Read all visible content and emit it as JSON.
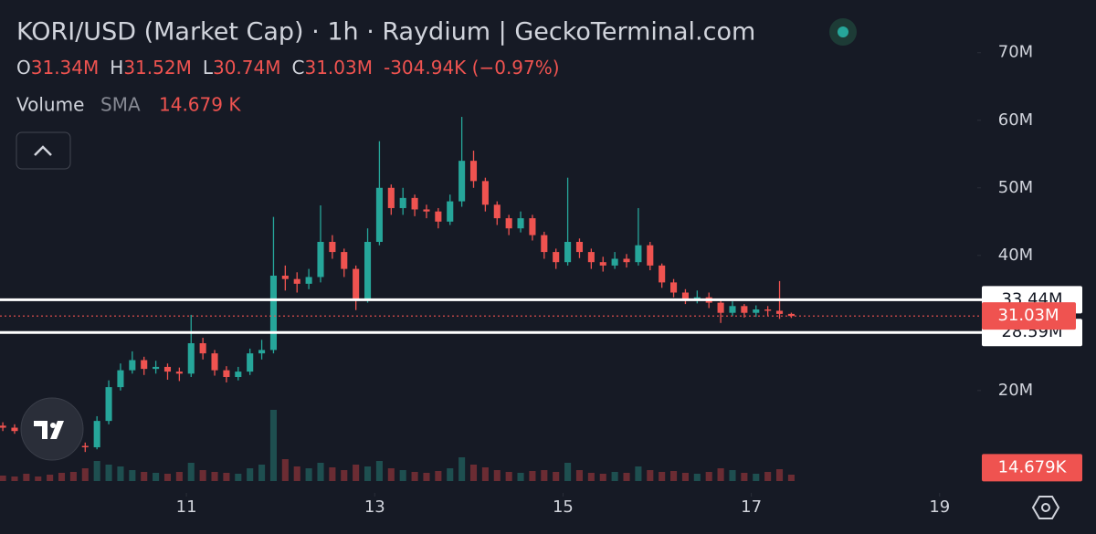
{
  "chart_data": {
    "type": "candlestick",
    "title": "KORI/USD (Market Cap) · 1h · Raydium | GeckoTerminal.com",
    "ohlc_legend": [
      {
        "label": "O",
        "value": "31.34M"
      },
      {
        "label": "H",
        "value": "31.52M"
      },
      {
        "label": "L",
        "value": "30.74M"
      },
      {
        "label": "C",
        "value": "31.03M"
      }
    ],
    "change": "-304.94K (−0.97%)",
    "volume_title": "Volume",
    "sma_title": "SMA",
    "sma_value": "14.679 K",
    "up_color": "#26a69a",
    "down_color": "#ef5350",
    "up_volume_color": "#1e4f50",
    "down_volume_color": "#6b2c33",
    "x": [
      9.05,
      9.175,
      9.3,
      9.425,
      9.55,
      9.675,
      9.8,
      9.925,
      10.05,
      10.175,
      10.3,
      10.425,
      10.55,
      10.675,
      10.8,
      10.925,
      11.05,
      11.175,
      11.3,
      11.425,
      11.55,
      11.675,
      11.8,
      11.925,
      12.05,
      12.175,
      12.3,
      12.425,
      12.55,
      12.675,
      12.8,
      12.925,
      13.05,
      13.175,
      13.3,
      13.425,
      13.55,
      13.675,
      13.8,
      13.925,
      14.05,
      14.175,
      14.3,
      14.425,
      14.55,
      14.675,
      14.8,
      14.925,
      15.05,
      15.175,
      15.3,
      15.425,
      15.55,
      15.675,
      15.8,
      15.925,
      16.05,
      16.175,
      16.3,
      16.425,
      16.55,
      16.675,
      16.8,
      16.925,
      17.05,
      17.175,
      17.3,
      17.425
    ],
    "open": [
      14.8,
      14.5,
      14.0,
      13.5,
      13.2,
      12.8,
      12.2,
      11.8,
      11.6,
      15.5,
      20.5,
      23.0,
      24.5,
      23.2,
      23.5,
      22.8,
      22.5,
      27.0,
      25.5,
      23.0,
      22.0,
      22.8,
      25.5,
      26.0,
      37.0,
      36.5,
      35.8,
      36.8,
      42.0,
      40.5,
      38.0,
      33.5,
      42.0,
      50.0,
      47.0,
      48.5,
      46.8,
      46.5,
      45.0,
      48.0,
      54.0,
      51.0,
      47.5,
      45.5,
      44.0,
      45.5,
      43.0,
      40.5,
      39.0,
      42.0,
      40.5,
      39.0,
      38.5,
      39.5,
      39.0,
      41.5,
      38.5,
      36.0,
      34.5,
      33.5,
      33.8,
      33.0,
      31.5,
      32.5,
      31.5,
      32.0,
      31.8,
      31.34
    ],
    "high": [
      15.3,
      15.0,
      14.4,
      13.9,
      13.6,
      13.2,
      12.6,
      12.3,
      16.2,
      21.5,
      24.0,
      25.8,
      25.0,
      24.4,
      24.0,
      23.4,
      31.2,
      27.8,
      26.0,
      23.6,
      23.5,
      26.2,
      27.5,
      45.7,
      38.5,
      37.5,
      38.0,
      47.4,
      43.0,
      41.0,
      38.5,
      44.0,
      56.9,
      50.5,
      50.0,
      49.0,
      47.5,
      47.0,
      49.0,
      60.5,
      55.5,
      51.5,
      48.0,
      46.0,
      46.5,
      46.0,
      43.5,
      41.0,
      51.5,
      42.5,
      41.0,
      39.8,
      40.5,
      40.2,
      47.0,
      42.0,
      38.8,
      36.5,
      35.0,
      34.8,
      34.5,
      33.4,
      33.2,
      32.8,
      32.6,
      32.5,
      36.2,
      31.52
    ],
    "low": [
      14.0,
      13.6,
      13.0,
      12.7,
      12.2,
      11.7,
      11.3,
      10.9,
      11.3,
      15.0,
      20.0,
      22.5,
      22.3,
      22.5,
      21.6,
      21.4,
      22.0,
      24.6,
      22.2,
      21.2,
      21.5,
      22.3,
      24.6,
      25.5,
      34.8,
      34.5,
      35.0,
      36.0,
      39.5,
      36.8,
      31.9,
      33.0,
      41.5,
      46.0,
      46.0,
      45.8,
      45.5,
      44.0,
      44.5,
      47.2,
      50.0,
      46.5,
      44.5,
      43.0,
      43.4,
      42.2,
      39.5,
      38.0,
      38.5,
      39.6,
      38.0,
      37.6,
      38.0,
      38.2,
      38.5,
      37.8,
      35.2,
      33.8,
      32.8,
      32.9,
      32.2,
      30.0,
      31.0,
      30.8,
      30.9,
      31.0,
      30.6,
      30.74
    ],
    "close": [
      14.5,
      14.0,
      13.5,
      13.2,
      12.8,
      12.2,
      11.8,
      11.6,
      15.5,
      20.5,
      23.0,
      24.5,
      23.2,
      23.5,
      22.8,
      22.5,
      27.0,
      25.5,
      23.0,
      22.0,
      22.8,
      25.5,
      26.0,
      37.0,
      36.5,
      35.8,
      36.8,
      42.0,
      40.5,
      38.0,
      33.5,
      42.0,
      50.0,
      47.0,
      48.5,
      46.8,
      46.5,
      45.0,
      48.0,
      54.0,
      51.0,
      47.5,
      45.5,
      44.0,
      45.5,
      43.0,
      40.5,
      39.0,
      42.0,
      40.5,
      39.0,
      38.5,
      39.5,
      39.0,
      41.5,
      38.5,
      36.0,
      34.5,
      33.5,
      33.8,
      33.0,
      31.5,
      32.5,
      31.5,
      32.0,
      31.8,
      31.34,
      31.03
    ],
    "volume": [
      6,
      5,
      8,
      5,
      7,
      9,
      10,
      14,
      22,
      18,
      16,
      12,
      10,
      9,
      8,
      10,
      20,
      12,
      10,
      9,
      8,
      14,
      18,
      78,
      24,
      16,
      14,
      20,
      15,
      12,
      18,
      16,
      22,
      14,
      12,
      10,
      9,
      11,
      14,
      26,
      18,
      15,
      12,
      10,
      9,
      11,
      12,
      10,
      20,
      12,
      9,
      8,
      10,
      9,
      16,
      12,
      10,
      11,
      9,
      8,
      10,
      14,
      12,
      9,
      8,
      10,
      13,
      7
    ],
    "xlim": [
      9.02,
      19.4
    ],
    "xticks": [
      11,
      13,
      15,
      17,
      19
    ],
    "ylim": [
      6.6,
      77.8
    ],
    "yticks": [
      {
        "value": 20,
        "label": "20M"
      },
      {
        "value": 40,
        "label": "40M"
      },
      {
        "value": 50,
        "label": "50M"
      },
      {
        "value": 60,
        "label": "60M"
      },
      {
        "value": 70,
        "label": "70M"
      }
    ],
    "volume_ylim": [
      0,
      100
    ],
    "price_lines": [
      {
        "value": 33.44,
        "label": "33.44M"
      },
      {
        "value": 28.59,
        "label": "28.59M"
      }
    ],
    "last_price": {
      "value": 31.03,
      "label": "31.03M"
    },
    "volume_badge": {
      "value": 14.679,
      "label": "14.679K"
    }
  }
}
